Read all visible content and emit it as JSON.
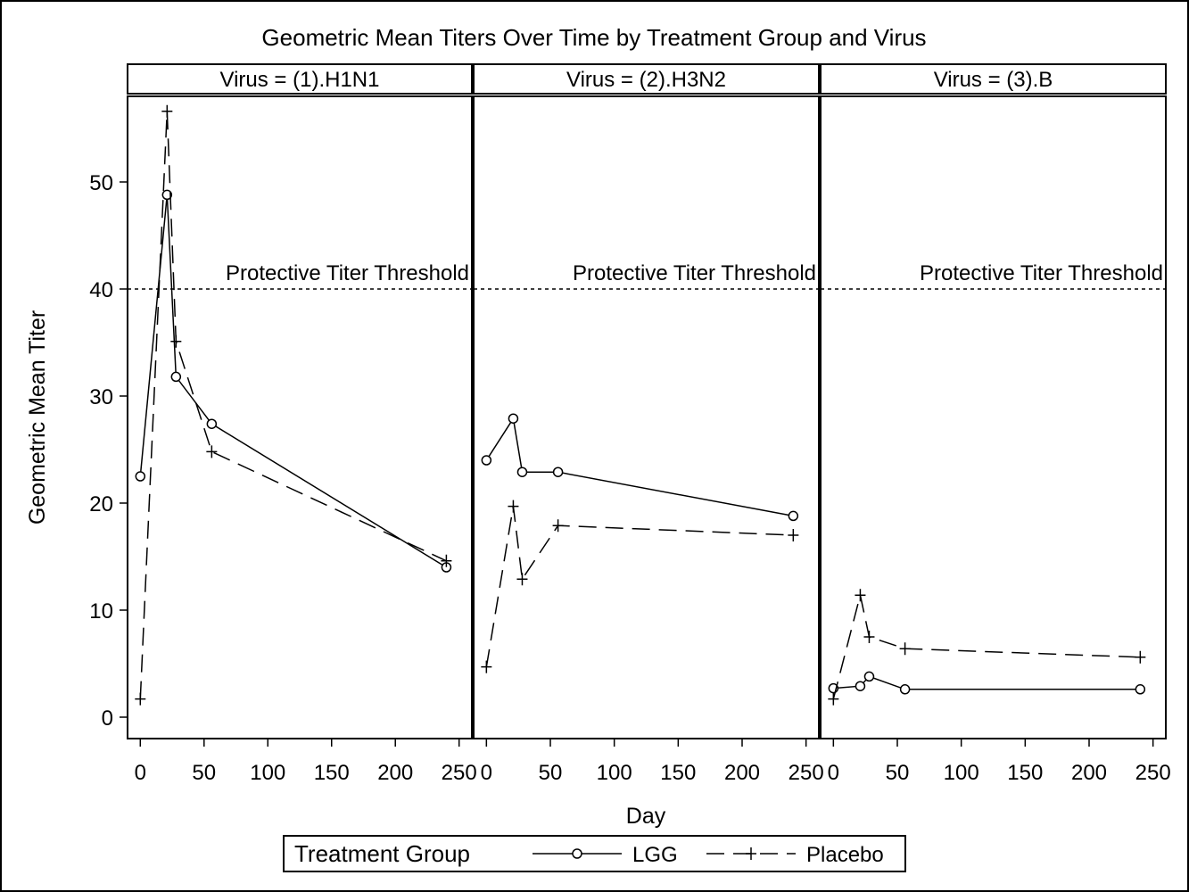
{
  "chart_data": {
    "type": "line",
    "title": "Geometric Mean Titers Over Time by Treatment Group and Virus",
    "xlabel": "Day",
    "ylabel": "Geometric Mean Titer",
    "xlim": [
      -10,
      260
    ],
    "ylim": [
      -2,
      58
    ],
    "x_ticks": [
      0,
      50,
      100,
      150,
      200,
      250
    ],
    "y_ticks": [
      0,
      10,
      20,
      30,
      40,
      50
    ],
    "reference_line": {
      "y": 40,
      "label": "Protective Titer Threshold",
      "style": "dotted"
    },
    "legend": {
      "title": "Treatment Group",
      "position": "bottom",
      "entries": [
        "LGG",
        "Placebo"
      ]
    },
    "panels": [
      {
        "label": "Virus = (1).H1N1",
        "series": [
          {
            "name": "LGG",
            "marker": "circle",
            "line": "solid",
            "x": [
              0,
              21,
              28,
              56,
              240
            ],
            "y": [
              22.5,
              48.8,
              31.8,
              27.4,
              14.0
            ]
          },
          {
            "name": "Placebo",
            "marker": "plus",
            "line": "dashed",
            "x": [
              0,
              21,
              28,
              56,
              240
            ],
            "y": [
              1.7,
              56.6,
              35.1,
              24.8,
              14.6
            ]
          }
        ]
      },
      {
        "label": "Virus = (2).H3N2",
        "series": [
          {
            "name": "LGG",
            "marker": "circle",
            "line": "solid",
            "x": [
              0,
              21,
              28,
              56,
              240
            ],
            "y": [
              24.0,
              27.9,
              22.9,
              22.9,
              18.8
            ]
          },
          {
            "name": "Placebo",
            "marker": "plus",
            "line": "dashed",
            "x": [
              0,
              21,
              28,
              56,
              240
            ],
            "y": [
              4.7,
              19.7,
              12.9,
              17.9,
              17.0
            ]
          }
        ]
      },
      {
        "label": "Virus = (3).B",
        "series": [
          {
            "name": "LGG",
            "marker": "circle",
            "line": "solid",
            "x": [
              0,
              21,
              28,
              56,
              240
            ],
            "y": [
              2.7,
              2.9,
              3.8,
              2.6,
              2.6
            ]
          },
          {
            "name": "Placebo",
            "marker": "plus",
            "line": "dashed",
            "x": [
              0,
              21,
              28,
              56,
              240
            ],
            "y": [
              1.7,
              11.4,
              7.5,
              6.4,
              5.6
            ]
          }
        ]
      }
    ]
  },
  "colors": {
    "line": "#000000",
    "background": "#ffffff"
  }
}
